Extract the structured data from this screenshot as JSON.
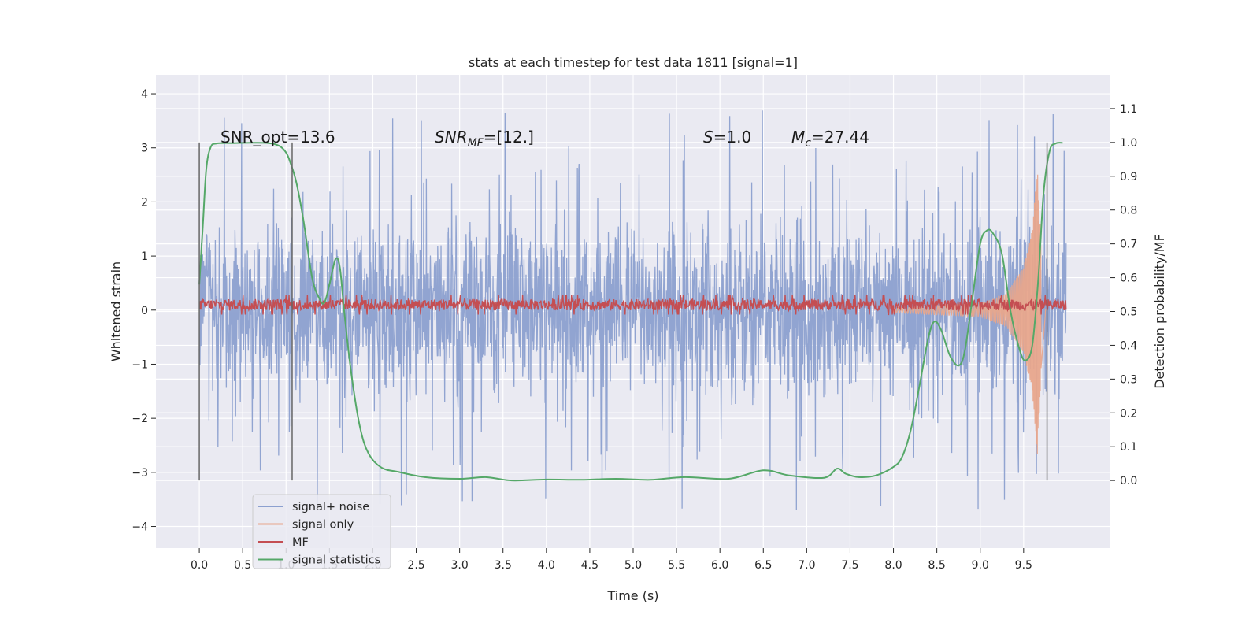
{
  "chart_data": {
    "type": "line",
    "title": "stats at each timestep for test data 1811 [signal=1]",
    "xlabel": "Time (s)",
    "ylabel_left": "Whitened strain",
    "ylabel_right": "Detection probability/MF",
    "xlim": [
      -0.5,
      10.5
    ],
    "ylim_left": [
      -4.4,
      4.35
    ],
    "ylim_right": [
      -0.2,
      1.2
    ],
    "xticks": [
      0.0,
      0.5,
      1.0,
      1.5,
      2.0,
      2.5,
      3.0,
      3.5,
      4.0,
      4.5,
      5.0,
      5.5,
      6.0,
      6.5,
      7.0,
      7.5,
      8.0,
      8.5,
      9.0,
      9.5
    ],
    "xtick_labels": [
      "0.0",
      "0.5",
      "1.0",
      "1.5",
      "2.0",
      "2.5",
      "3.0",
      "3.5",
      "4.0",
      "4.5",
      "5.0",
      "5.5",
      "6.0",
      "6.5",
      "7.0",
      "7.5",
      "8.0",
      "8.5",
      "9.0",
      "9.5"
    ],
    "yticks_left": [
      -4,
      -3,
      -2,
      -1,
      0,
      1,
      2,
      3,
      4
    ],
    "ytick_labels_left": [
      "−4",
      "−3",
      "−2",
      "−1",
      "0",
      "1",
      "2",
      "3",
      "4"
    ],
    "yticks_right": [
      0.0,
      0.1,
      0.2,
      0.3,
      0.4,
      0.5,
      0.6,
      0.7,
      0.8,
      0.9,
      1.0,
      1.1
    ],
    "ytick_labels_right": [
      "0.0",
      "0.1",
      "0.2",
      "0.3",
      "0.4",
      "0.5",
      "0.6",
      "0.7",
      "0.8",
      "0.9",
      "1.0",
      "1.1"
    ],
    "grid": true,
    "legend_placement": "lower-left",
    "annotations": {
      "snr_opt": "SNR_opt=13.6",
      "snr_mf_base": "SNR",
      "snr_mf_sub": "MF",
      "snr_mf_value": "=[12.]",
      "s_symbol": "S",
      "s_value": "=1.0",
      "mc_base": "M",
      "mc_sub": "c",
      "mc_value": "=27.44"
    },
    "vertical_lines": [
      {
        "x": 0.0,
        "y_range": [
          -3.15,
          3.1
        ]
      },
      {
        "x": 1.07,
        "y_range": [
          -3.15,
          3.1
        ]
      },
      {
        "x": 9.77,
        "y_range": [
          -3.15,
          3.1
        ]
      }
    ],
    "series": [
      {
        "name": "signal+ noise",
        "color": "#8ca0cf",
        "axis": "left",
        "t_range": [
          0.0,
          9.99
        ],
        "typical_amplitude": 1.2,
        "max_amplitude": 3.9
      },
      {
        "name": "signal only",
        "color": "#e8a68c",
        "axis": "left",
        "envelope": [
          [
            8.0,
            0.05
          ],
          [
            9.0,
            0.12
          ],
          [
            9.3,
            0.3
          ],
          [
            9.5,
            0.8
          ],
          [
            9.6,
            1.5
          ],
          [
            9.66,
            2.7
          ],
          [
            9.7,
            1.2
          ],
          [
            9.75,
            0.1
          ]
        ]
      },
      {
        "name": "MF",
        "color": "#c44e52",
        "axis": "left",
        "t_range": [
          0.0,
          9.99
        ],
        "baseline": 0.1,
        "spread": 0.13
      },
      {
        "name": "signal statistics",
        "color": "#55a868",
        "axis": "right",
        "points": [
          [
            0.0,
            0.58
          ],
          [
            0.04,
            0.75
          ],
          [
            0.08,
            0.92
          ],
          [
            0.13,
            0.985
          ],
          [
            0.2,
            0.997
          ],
          [
            0.4,
            0.998
          ],
          [
            0.6,
            0.999
          ],
          [
            0.8,
            0.998
          ],
          [
            0.92,
            0.99
          ],
          [
            1.0,
            0.97
          ],
          [
            1.05,
            0.94
          ],
          [
            1.12,
            0.88
          ],
          [
            1.2,
            0.77
          ],
          [
            1.3,
            0.6
          ],
          [
            1.38,
            0.54
          ],
          [
            1.44,
            0.525
          ],
          [
            1.5,
            0.58
          ],
          [
            1.57,
            0.655
          ],
          [
            1.62,
            0.63
          ],
          [
            1.67,
            0.5
          ],
          [
            1.75,
            0.32
          ],
          [
            1.85,
            0.16
          ],
          [
            1.95,
            0.08
          ],
          [
            2.1,
            0.038
          ],
          [
            2.3,
            0.025
          ],
          [
            2.6,
            0.01
          ],
          [
            3.0,
            0.005
          ],
          [
            3.3,
            0.01
          ],
          [
            3.6,
            0.0
          ],
          [
            4.0,
            0.003
          ],
          [
            4.4,
            0.002
          ],
          [
            4.8,
            0.005
          ],
          [
            5.2,
            0.002
          ],
          [
            5.6,
            0.01
          ],
          [
            6.1,
            0.005
          ],
          [
            6.5,
            0.03
          ],
          [
            6.8,
            0.015
          ],
          [
            7.2,
            0.008
          ],
          [
            7.35,
            0.035
          ],
          [
            7.45,
            0.02
          ],
          [
            7.6,
            0.01
          ],
          [
            7.8,
            0.015
          ],
          [
            8.0,
            0.04
          ],
          [
            8.1,
            0.07
          ],
          [
            8.2,
            0.15
          ],
          [
            8.3,
            0.28
          ],
          [
            8.4,
            0.42
          ],
          [
            8.47,
            0.47
          ],
          [
            8.55,
            0.445
          ],
          [
            8.65,
            0.37
          ],
          [
            8.75,
            0.34
          ],
          [
            8.82,
            0.38
          ],
          [
            8.9,
            0.52
          ],
          [
            9.0,
            0.7
          ],
          [
            9.08,
            0.74
          ],
          [
            9.15,
            0.73
          ],
          [
            9.25,
            0.67
          ],
          [
            9.35,
            0.5
          ],
          [
            9.45,
            0.39
          ],
          [
            9.52,
            0.355
          ],
          [
            9.6,
            0.4
          ],
          [
            9.67,
            0.6
          ],
          [
            9.73,
            0.85
          ],
          [
            9.8,
            0.975
          ],
          [
            9.87,
            0.997
          ],
          [
            9.95,
            0.999
          ]
        ]
      }
    ]
  },
  "colors": {
    "plot_background": "#eaeaf2",
    "grid": "#ffffff",
    "vertical_line": "#666666",
    "legend_background": "#eaeaf2",
    "legend_border": "#cccccc"
  }
}
